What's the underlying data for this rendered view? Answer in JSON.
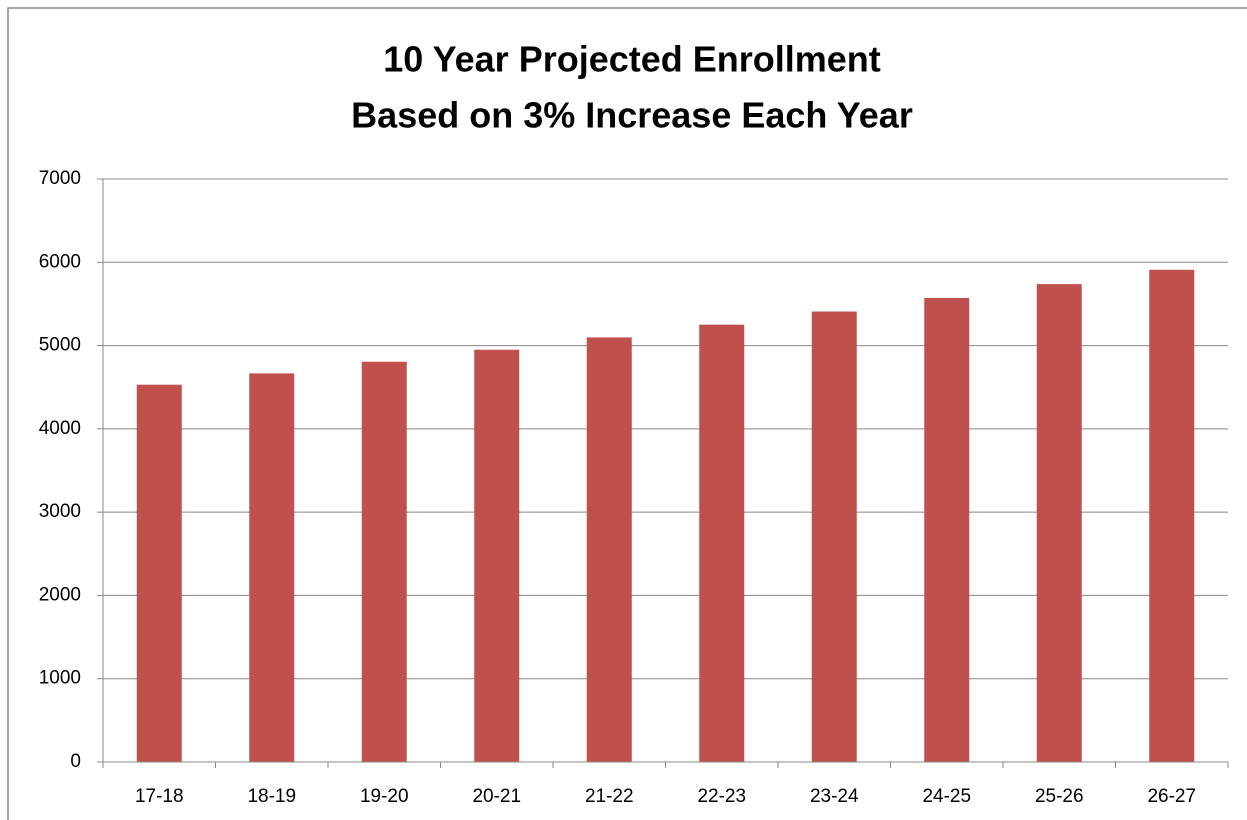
{
  "chart_data": {
    "type": "bar",
    "title": [
      "10 Year Projected Enrollment",
      "Based on 3% Increase Each Year"
    ],
    "categories": [
      "17-18",
      "18-19",
      "19-20",
      "20-21",
      "21-22",
      "22-23",
      "23-24",
      "24-25",
      "25-26",
      "26-27"
    ],
    "values": [
      4530,
      4666,
      4806,
      4950,
      5098,
      5251,
      5409,
      5571,
      5738,
      5910
    ],
    "color": "#c0504d",
    "ylim": [
      0,
      7000
    ],
    "yticks": [
      0,
      1000,
      2000,
      3000,
      4000,
      5000,
      6000,
      7000
    ],
    "grid": true
  }
}
